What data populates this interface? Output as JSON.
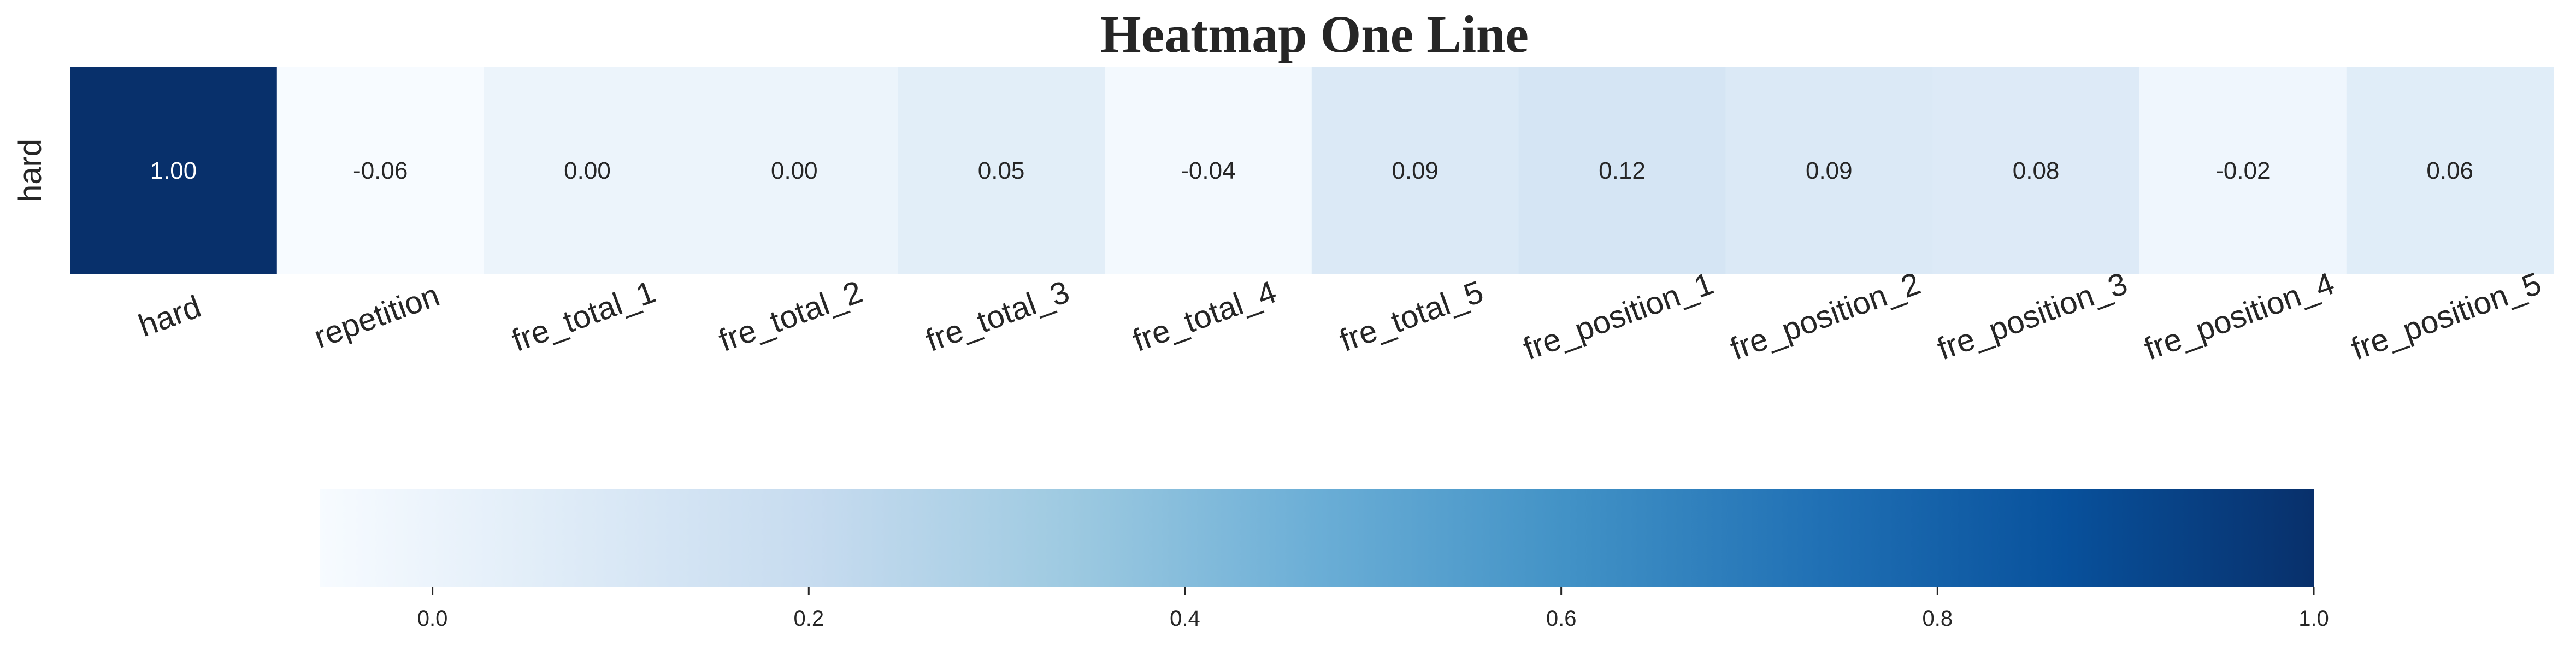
{
  "chart_data": {
    "type": "heatmap",
    "title": "Heatmap One Line",
    "row_labels": [
      "hard"
    ],
    "column_labels": [
      "hard",
      "repetition",
      "fre_total_1",
      "fre_total_2",
      "fre_total_3",
      "fre_total_4",
      "fre_total_5",
      "fre_position_1",
      "fre_position_2",
      "fre_position_3",
      "fre_position_4",
      "fre_position_5"
    ],
    "values": [
      [
        1.0,
        -0.06,
        0.0,
        0.0,
        0.05,
        -0.04,
        0.09,
        0.12,
        0.09,
        0.08,
        -0.02,
        0.06
      ]
    ],
    "value_labels": [
      [
        "1.00",
        "-0.06",
        "0.00",
        "0.00",
        "0.05",
        "-0.04",
        "0.09",
        "0.12",
        "0.09",
        "0.08",
        "-0.02",
        "0.06"
      ]
    ],
    "colormap": "Blues",
    "vmin": -0.06,
    "vmax": 1.0,
    "colorbar": {
      "orientation": "horizontal",
      "placement": "bottom",
      "ticks": [
        0.0,
        0.2,
        0.4,
        0.6,
        0.8,
        1.0
      ],
      "tick_labels": [
        "0.0",
        "0.2",
        "0.4",
        "0.6",
        "0.8",
        "1.0"
      ]
    },
    "xtick_rotation": 20,
    "grid": false
  },
  "colors": {
    "text_dark": "#262626",
    "text_light": "#ffffff",
    "blues_stops": [
      "#f7fbff",
      "#deebf7",
      "#c6dbef",
      "#9ecae1",
      "#6baed6",
      "#4292c6",
      "#2171b5",
      "#08519c",
      "#08306b"
    ]
  }
}
